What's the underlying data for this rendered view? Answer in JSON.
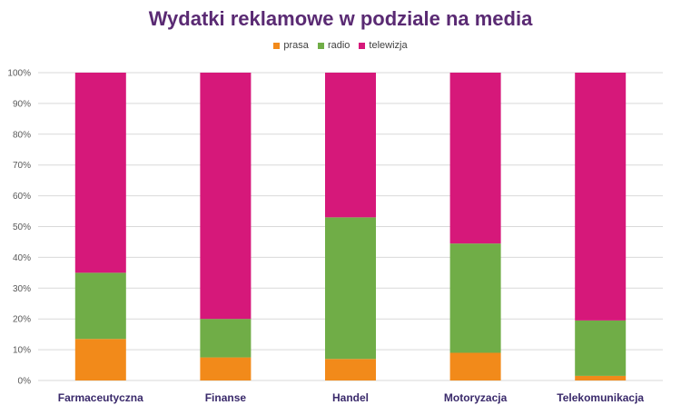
{
  "chart_data": {
    "type": "bar",
    "stacked": true,
    "percent": true,
    "title": "Wydatki reklamowe w podziale na media",
    "xlabel": "",
    "ylabel": "",
    "ylim": [
      0,
      100
    ],
    "y_ticks": [
      "0%",
      "10%",
      "20%",
      "30%",
      "40%",
      "50%",
      "60%",
      "70%",
      "80%",
      "90%",
      "100%"
    ],
    "grid": true,
    "legend_position": "top",
    "categories": [
      "Farmaceutyczna",
      "Finanse",
      "Handel",
      "Motoryzacja",
      "Telekomunikacja"
    ],
    "series": [
      {
        "name": "prasa",
        "color": "#f28a1a",
        "values": [
          13.5,
          7.5,
          7,
          9,
          1.5
        ]
      },
      {
        "name": "radio",
        "color": "#70ad47",
        "values": [
          21.5,
          12.5,
          46,
          35.5,
          18
        ]
      },
      {
        "name": "telewizja",
        "color": "#d6187a",
        "values": [
          65,
          80,
          47,
          55.5,
          80.5
        ]
      }
    ]
  }
}
